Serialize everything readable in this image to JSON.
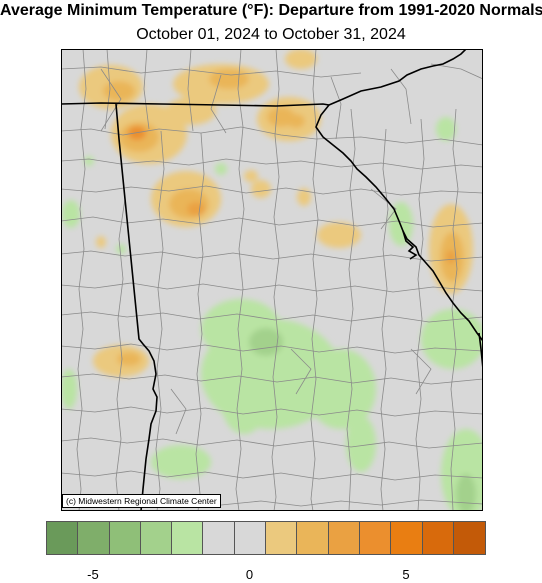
{
  "title": "Average Minimum Temperature (°F): Departure from 1991-2020 Normals",
  "subtitle": "October 01, 2024 to October 31, 2024",
  "credit": "(c) Midwestern Regional Climate Center",
  "legend": {
    "colors": [
      "#6a9a5a",
      "#7fae6a",
      "#8fbf78",
      "#a3d18c",
      "#b9e4a3",
      "#d8d8d8",
      "#d8d8d8",
      "#ebc97e",
      "#eab559",
      "#eaa142",
      "#eb8f2e",
      "#e97e12",
      "#d86a0c",
      "#c35a08"
    ],
    "ticks": [
      {
        "label": "-5",
        "pos": 1
      },
      {
        "label": "0",
        "pos": 6
      },
      {
        "label": "5",
        "pos": 11
      }
    ]
  },
  "colors": {
    "background": "#d8d8d8",
    "county_lines": "#8a8a8a",
    "state_lines": "#000000"
  }
}
